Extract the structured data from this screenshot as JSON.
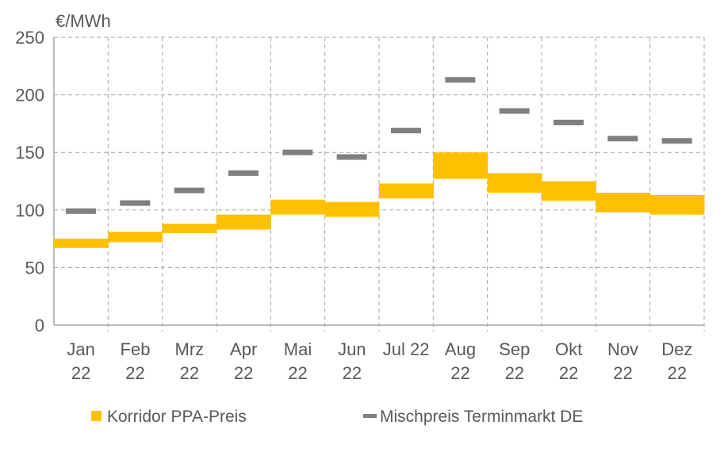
{
  "chart_data": {
    "type": "bar",
    "unit_label": "€/MWh",
    "ylim": [
      0,
      250
    ],
    "yticks": [
      0,
      50,
      100,
      150,
      200,
      250
    ],
    "grid": true,
    "legend_position": "bottom",
    "categories": [
      [
        "Jan",
        "22"
      ],
      [
        "Feb",
        "22"
      ],
      [
        "Mrz",
        "22"
      ],
      [
        "Apr",
        "22"
      ],
      [
        "Mai",
        "22"
      ],
      [
        "Jun",
        "22"
      ],
      [
        "Jul 22",
        ""
      ],
      [
        "Aug",
        "22"
      ],
      [
        "Sep",
        "22"
      ],
      [
        "Okt",
        "22"
      ],
      [
        "Nov",
        "22"
      ],
      [
        "Dez",
        "22"
      ]
    ],
    "series": [
      {
        "name": "Korridor PPA-Preis",
        "type": "floating-bar",
        "color": "#FFC000",
        "low": [
          67,
          72,
          80,
          83,
          96,
          94,
          110,
          127,
          115,
          108,
          98,
          96
        ],
        "high": [
          75,
          81,
          88,
          96,
          109,
          107,
          123,
          150,
          132,
          125,
          115,
          113
        ]
      },
      {
        "name": "Mischpreis Terminmarkt DE",
        "type": "marker",
        "color": "#808080",
        "values": [
          99,
          106,
          117,
          132,
          150,
          146,
          169,
          213,
          186,
          176,
          162,
          160
        ]
      }
    ]
  }
}
